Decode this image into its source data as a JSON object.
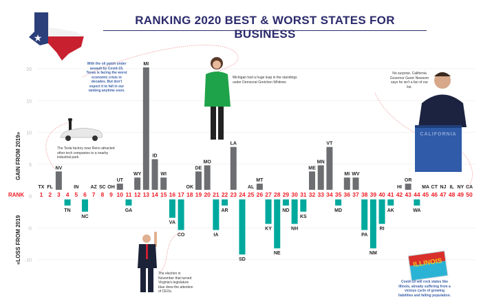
{
  "title": "RANKING 2020 BEST & WORST STATES FOR BUSINESS",
  "colors": {
    "gain": "#6d6e71",
    "loss": "#00a99d",
    "rank": "#ee1c25",
    "title": "#2b2a6b",
    "note_blue": "#3a5fa8"
  },
  "annotations": {
    "texas": "With the oil patch under assault by Covid-19, Texas is facing the worst economic crisis in decades. But don't expect it to fall in our ranking anytime soon.",
    "tesla": "The Tesla factory near Reno attracted other tech companies to a nearby industrial park.",
    "michigan": "Michigan had a huge leap in the standings under Democrat Gretchen Whitmer.",
    "california": "No surprise, California Governor Gavin Newsom says he isn't a fan of our list.",
    "virginia": "The election in November that turned Virginia's legislature blue drew the attention of CEOs.",
    "illinois": "Covid-19 will rock states like Illinois, already suffering from a vicious cycle of growing liabilities and falling population.",
    "podium_text": "CALIFORNIA",
    "postcard_text": "ILLINOIS"
  },
  "chart_data": {
    "type": "bar",
    "title": "RANKING 2020 BEST & WORST STATES FOR BUSINESS",
    "xlabel": "RANK",
    "ylabel_gain": "GAIN FROM 2019»",
    "ylabel_loss": "«LOSS FROM 2019",
    "ylim": [
      -10,
      20
    ],
    "yticks": [
      "20",
      "15",
      "10",
      "5",
      "0",
      "-5",
      "-10"
    ],
    "ytick_values": [
      20,
      15,
      10,
      5,
      0,
      -5,
      -10
    ],
    "grid": true,
    "categories": [
      "1",
      "2",
      "3",
      "4",
      "5",
      "6",
      "7",
      "8",
      "9",
      "10",
      "11",
      "12",
      "13",
      "14",
      "15",
      "16",
      "17",
      "18",
      "19",
      "20",
      "21",
      "22",
      "23",
      "24",
      "25",
      "26",
      "27",
      "28",
      "29",
      "30",
      "31",
      "32",
      "33",
      "34",
      "35",
      "36",
      "37",
      "38",
      "39",
      "40",
      "41",
      "42",
      "43",
      "44",
      "45",
      "46",
      "47",
      "48",
      "49",
      "50"
    ],
    "states": [
      "TX",
      "FL",
      "NV",
      "TN",
      "IN",
      "NC",
      "AZ",
      "SC",
      "OH",
      "UT",
      "GA",
      "WY",
      "MI",
      "ID",
      "WI",
      "VA",
      "CO",
      "OK",
      "DE",
      "MO",
      "IA",
      "AR",
      "LA",
      "SD",
      "AL",
      "MT",
      "KY",
      "NE",
      "ND",
      "NH",
      "KS",
      "ME",
      "MN",
      "VT",
      "MD",
      "MI",
      "WV",
      "PA",
      "NM",
      "RI",
      "AK",
      "HI",
      "OR",
      "WA",
      "MA",
      "CT",
      "NJ",
      "IL",
      "NY",
      "CA"
    ],
    "values": [
      0,
      0,
      3,
      -1,
      0,
      -2,
      0,
      0,
      0,
      1,
      -1,
      2,
      20,
      5,
      2,
      -3,
      -5,
      0,
      3,
      4,
      -5,
      -1,
      7,
      -9,
      0,
      1,
      -4,
      -8,
      -1,
      -4,
      -2,
      3,
      4,
      7,
      -1,
      2,
      2,
      -5,
      -8,
      -4,
      -1,
      0,
      1,
      -1,
      0,
      0,
      0,
      0,
      0,
      0
    ]
  }
}
